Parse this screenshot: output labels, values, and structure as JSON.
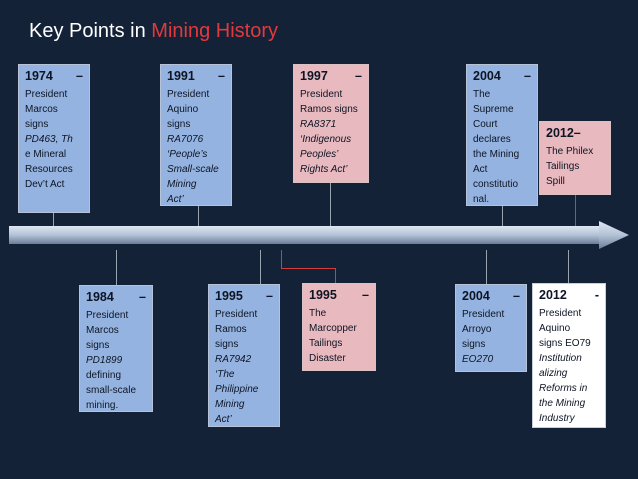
{
  "title": {
    "prefix": "Key Points in ",
    "highlight": "Mining History"
  },
  "colors": {
    "background": "#142238",
    "title_accent": "#e2393c",
    "box_blue": "#95b3e0",
    "box_pink": "#e8b9bf",
    "box_white": "#ffffff"
  },
  "events": {
    "e1974": {
      "head": "1974 –",
      "l1": "President",
      "l2": "Marcos",
      "l3": "signs",
      "l4": "PD463, Th",
      "l5": "e Mineral",
      "l6": "Resources",
      "l7": "Dev’t Act"
    },
    "e1991": {
      "head": "1991 –",
      "l1": "President",
      "l2": "Aquino",
      "l3": "signs",
      "l4": "RA7076",
      "l5": "‘People’s",
      "l6": "Small-scale",
      "l7": "Mining",
      "l8": "Act’"
    },
    "e1997": {
      "head": "1997 –",
      "l1": "President",
      "l2": "Ramos signs",
      "l3": "RA8371",
      "l4": "‘Indigenous",
      "l5": "Peoples’",
      "l6": "Rights Act’"
    },
    "e2004a": {
      "head": "2004 –",
      "l1": "The",
      "l2": "Supreme",
      "l3": "Court",
      "l4": "declares",
      "l5": "the Mining",
      "l6": "Act",
      "l7": "constitutio",
      "l8": "nal."
    },
    "e2012a": {
      "head": "2012–",
      "l1": "The Philex",
      "l2": "Tailings",
      "l3": "Spill"
    },
    "e1984": {
      "head": "1984 –",
      "l1": "President",
      "l2": "Marcos",
      "l3": "signs",
      "l4": "PD1899",
      "l5": "defining",
      "l6": "small-scale",
      "l7": "mining."
    },
    "e1995a": {
      "head": "1995 –",
      "l1": "President",
      "l2": "Ramos",
      "l3": "signs",
      "l4": "RA7942",
      "l5": "‘The",
      "l6": "Philippine",
      "l7": "Mining",
      "l8": "Act’"
    },
    "e1995b": {
      "head": "1995 –",
      "l1": "The",
      "l2": "Marcopper",
      "l3": "Tailings",
      "l4": "Disaster"
    },
    "e2004b": {
      "head": "2004 –",
      "l1": "President",
      "l2": "Arroyo",
      "l3": "signs",
      "l4": "EO270"
    },
    "e2012b": {
      "head": "2012 -",
      "l1": "President",
      "l2": "Aquino",
      "l3": "signs EO79",
      "l4": "Institution",
      "l5": "alizing",
      "l6": "Reforms in",
      "l7": "the Mining",
      "l8": "Industry"
    }
  }
}
